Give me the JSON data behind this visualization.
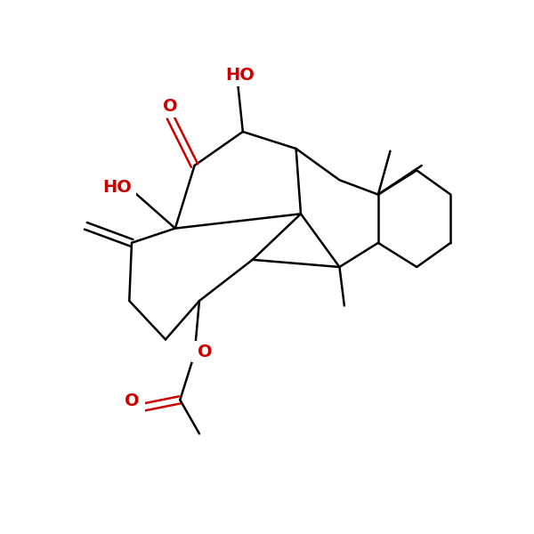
{
  "bg": "#ffffff",
  "bond_color": "#000000",
  "red_color": "#cc0000",
  "lw": 1.8,
  "fs": 14,
  "figsize": [
    6.0,
    6.0
  ],
  "dpi": 100,
  "xlim": [
    -0.5,
    10.5
  ],
  "ylim": [
    -0.5,
    10.5
  ]
}
